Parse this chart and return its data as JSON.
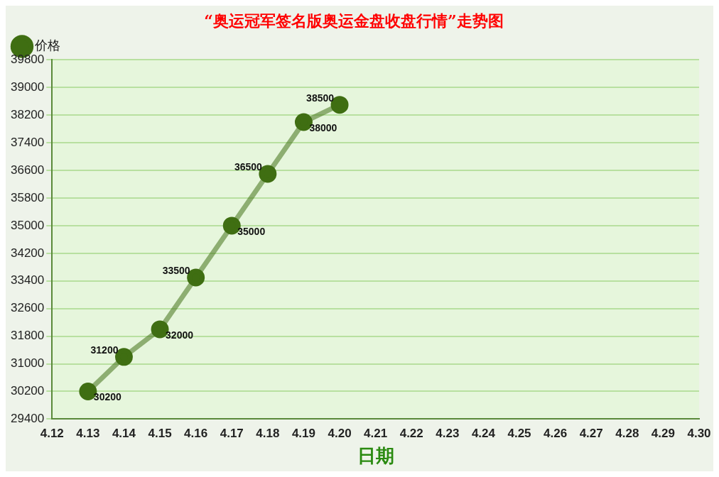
{
  "chart_data": {
    "type": "line",
    "title": "“奥运冠军签名版奥运金盘收盘行情”走势图",
    "xlabel": "日期",
    "categories": [
      "4.12",
      "4.13",
      "4.14",
      "4.15",
      "4.16",
      "4.17",
      "4.18",
      "4.19",
      "4.20",
      "4.21",
      "4.22",
      "4.23",
      "4.24",
      "4.25",
      "4.26",
      "4.27",
      "4.28",
      "4.29",
      "4.30"
    ],
    "series": [
      {
        "name": "价格",
        "color": "#3f6e12",
        "values": [
          null,
          30200,
          31200,
          32000,
          33500,
          35000,
          36500,
          38000,
          38500,
          null,
          null,
          null,
          null,
          null,
          null,
          null,
          null,
          null,
          null
        ]
      }
    ],
    "ylim": [
      29400,
      39800
    ],
    "yticks": [
      29400,
      30200,
      31000,
      31800,
      32600,
      33400,
      34200,
      35000,
      35800,
      36600,
      37400,
      38200,
      39000,
      39800
    ],
    "grid": "y",
    "legend": "top left",
    "marker": "circle",
    "line_style": "solid",
    "data_labels": true
  }
}
